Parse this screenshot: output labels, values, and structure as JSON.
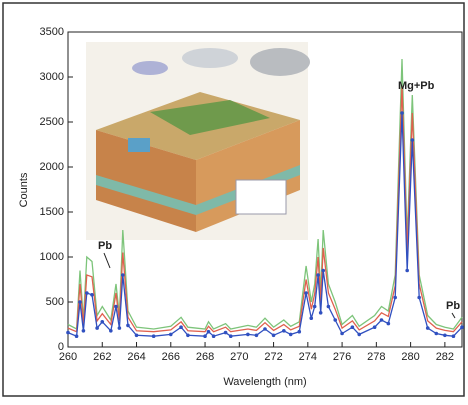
{
  "chart_data": {
    "type": "line",
    "x_label": "Wavelength (nm)",
    "y_label": "Counts",
    "xlim": [
      260,
      283
    ],
    "ylim": [
      0,
      3500
    ],
    "xticks": [
      260,
      262,
      264,
      266,
      268,
      270,
      272,
      274,
      276,
      278,
      280,
      282
    ],
    "yticks": [
      0,
      500,
      1000,
      1500,
      2000,
      2500,
      3000,
      3500
    ],
    "annotations": [
      "Pb",
      "Mg+Pb",
      "Pb"
    ],
    "x": [
      260,
      260.5,
      260.7,
      260.9,
      261.1,
      261.4,
      261.7,
      262.0,
      262.5,
      262.8,
      263.0,
      263.2,
      263.5,
      264,
      265,
      266,
      266.6,
      267,
      268,
      268.2,
      268.5,
      269.2,
      269.5,
      270.5,
      271,
      271.5,
      272,
      272.6,
      273,
      273.5,
      273.9,
      274.2,
      274.4,
      274.6,
      274.75,
      274.9,
      275.2,
      275.6,
      276,
      276.6,
      277,
      277.9,
      278.3,
      278.7,
      279.1,
      279.5,
      279.8,
      280.1,
      280.5,
      281,
      281.5,
      282,
      282.5,
      283
    ],
    "series": [
      {
        "color": "#7dc47a",
        "values": [
          250,
          200,
          850,
          300,
          1000,
          950,
          350,
          450,
          300,
          700,
          350,
          1300,
          400,
          220,
          200,
          230,
          330,
          220,
          200,
          280,
          200,
          260,
          200,
          240,
          220,
          320,
          220,
          300,
          230,
          280,
          900,
          500,
          700,
          1200,
          600,
          1300,
          700,
          500,
          250,
          350,
          230,
          350,
          450,
          400,
          800,
          3200,
          1200,
          2800,
          800,
          350,
          250,
          220,
          200,
          330
        ]
      },
      {
        "color": "#e0604e",
        "values": [
          210,
          170,
          700,
          250,
          800,
          780,
          290,
          370,
          250,
          600,
          290,
          1050,
          330,
          180,
          170,
          190,
          280,
          180,
          170,
          230,
          170,
          220,
          170,
          200,
          185,
          270,
          185,
          250,
          190,
          230,
          750,
          420,
          590,
          1000,
          500,
          1100,
          600,
          420,
          210,
          290,
          190,
          290,
          380,
          340,
          680,
          2900,
          1050,
          2600,
          700,
          290,
          210,
          185,
          170,
          280
        ]
      },
      {
        "color": "#3050c0",
        "markers": true,
        "values": [
          160,
          120,
          500,
          180,
          600,
          580,
          210,
          280,
          180,
          450,
          210,
          800,
          240,
          130,
          120,
          140,
          220,
          130,
          120,
          170,
          120,
          160,
          120,
          140,
          130,
          200,
          130,
          180,
          140,
          170,
          600,
          320,
          450,
          800,
          380,
          850,
          450,
          300,
          150,
          220,
          140,
          220,
          300,
          260,
          550,
          2600,
          850,
          2300,
          550,
          210,
          150,
          130,
          120,
          220
        ]
      }
    ]
  }
}
